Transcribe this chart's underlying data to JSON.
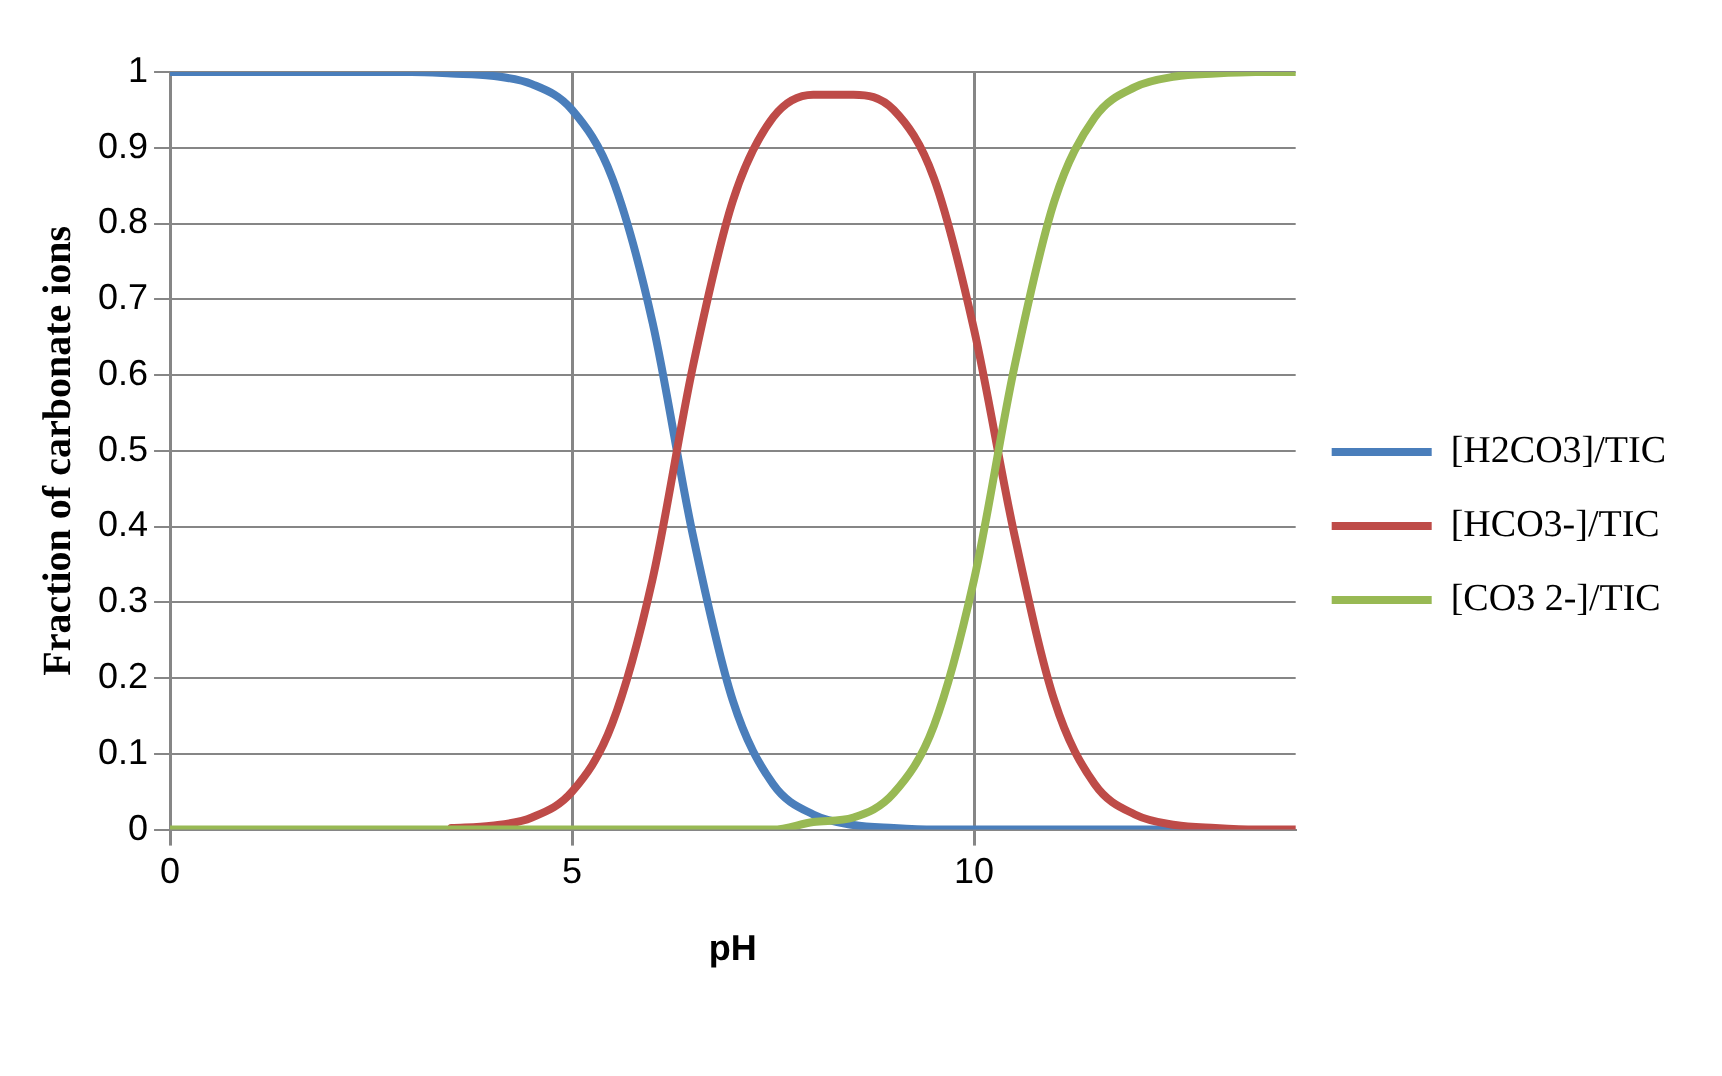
{
  "chart_data": {
    "type": "line",
    "xlabel": "pH",
    "ylabel": "Fraction of carbonate ions",
    "x": [
      0,
      0.5,
      1,
      1.5,
      2,
      2.5,
      3,
      3.5,
      4,
      4.5,
      5,
      5.5,
      6,
      6.5,
      7,
      7.5,
      8,
      8.5,
      9,
      9.5,
      10,
      10.5,
      11,
      11.5,
      12,
      12.5,
      13,
      13.5,
      14
    ],
    "series": [
      {
        "name": "[H2CO3]/TIC",
        "color": "#4a7ebb",
        "values": [
          1,
          1,
          1,
          1,
          1,
          1,
          1,
          0.998,
          0.995,
          0.984,
          0.95,
          0.86,
          0.67,
          0.39,
          0.17,
          0.06,
          0.02,
          0.006,
          0.002,
          0,
          0,
          0,
          0,
          0,
          0,
          0,
          0,
          null,
          null
        ]
      },
      {
        "name": "[HCO3-]/TIC",
        "color": "#be4b48",
        "values": [
          null,
          null,
          null,
          null,
          null,
          null,
          null,
          0.002,
          0.005,
          0.016,
          0.05,
          0.14,
          0.33,
          0.61,
          0.83,
          0.94,
          0.97,
          0.97,
          0.95,
          0.86,
          0.66,
          0.39,
          0.17,
          0.06,
          0.02,
          0.006,
          0.002,
          0,
          0
        ]
      },
      {
        "name": "[CO3 2-]/TIC",
        "color": "#98b954",
        "values": [
          0,
          0,
          0,
          0,
          0,
          0,
          0,
          0,
          0,
          0,
          0,
          0,
          0,
          0,
          0,
          0,
          0.01,
          0.016,
          0.048,
          0.137,
          0.33,
          0.61,
          0.83,
          0.94,
          0.98,
          0.994,
          0.998,
          1,
          1
        ]
      }
    ],
    "xlim": [
      0,
      14
    ],
    "xticks": [
      0,
      5,
      10
    ],
    "ylim": [
      0,
      1
    ],
    "yticks": [
      0,
      0.1,
      0.2,
      0.3,
      0.4,
      0.5,
      0.6,
      0.7,
      0.8,
      0.9,
      1
    ],
    "grid": true,
    "legend": "right",
    "marker": "none",
    "line_style": "solid"
  }
}
